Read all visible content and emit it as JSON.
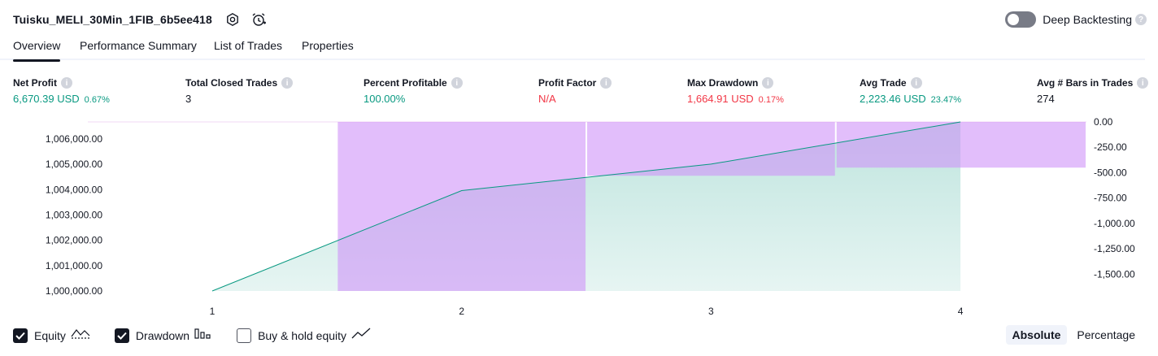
{
  "header": {
    "title": "Tuisku_MELI_30Min_1FIB_6b5ee418",
    "icons": [
      "settings-icon",
      "alarm-add-icon"
    ]
  },
  "deep_backtesting": {
    "label": "Deep Backtesting",
    "enabled": false,
    "help": "?"
  },
  "tabs": [
    {
      "label": "Overview",
      "active": true
    },
    {
      "label": "Performance Summary",
      "active": false
    },
    {
      "label": "List of Trades",
      "active": false
    },
    {
      "label": "Properties",
      "active": false
    }
  ],
  "metrics": [
    {
      "label": "Net Profit",
      "value": "6,670.39 USD",
      "pct": "0.67%",
      "color": "#089981"
    },
    {
      "label": "Total Closed Trades",
      "value": "3",
      "pct": "",
      "color": "#131722"
    },
    {
      "label": "Percent Profitable",
      "value": "100.00%",
      "pct": "",
      "color": "#089981"
    },
    {
      "label": "Profit Factor",
      "value": "N/A",
      "pct": "",
      "color": "#f23645"
    },
    {
      "label": "Max Drawdown",
      "value": "1,664.91 USD",
      "pct": "0.17%",
      "color": "#f23645"
    },
    {
      "label": "Avg Trade",
      "value": "2,223.46 USD",
      "pct": "23.47%",
      "color": "#089981"
    },
    {
      "label": "Avg # Bars in Trades",
      "value": "274",
      "pct": "",
      "color": "#131722"
    }
  ],
  "info_glyph": "i",
  "chart_data": {
    "type": "area",
    "x": [
      1,
      2,
      3,
      4
    ],
    "x_ticks": [
      "1",
      "2",
      "3",
      "4"
    ],
    "equity": {
      "values": [
        1000000,
        1003960,
        1005005,
        1006670
      ],
      "color": "#089981"
    },
    "drawdown": {
      "values": [
        0,
        -1664.91,
        -530,
        -450
      ],
      "color": "#ce93f8"
    },
    "left_axis": {
      "ticks": [
        1000000,
        1001000,
        1002000,
        1003000,
        1004000,
        1005000,
        1006000
      ],
      "labels": [
        "1,000,000.00",
        "1,001,000.00",
        "1,002,000.00",
        "1,003,000.00",
        "1,004,000.00",
        "1,005,000.00",
        "1,006,000.00"
      ],
      "range": [
        1000000,
        1006670
      ]
    },
    "right_axis": {
      "ticks": [
        0,
        -250,
        -500,
        -750,
        -1000,
        -1250,
        -1500
      ],
      "labels": [
        "0.00",
        "-250.00",
        "-500.00",
        "-750.00",
        "-1,000.00",
        "-1,250.00",
        "-1,500.00"
      ],
      "range": [
        -1664.91,
        0
      ]
    },
    "grid": false
  },
  "legend": [
    {
      "label": "Equity",
      "checked": true,
      "icon": "equity-line-icon"
    },
    {
      "label": "Drawdown",
      "checked": true,
      "icon": "drawdown-bars-icon"
    },
    {
      "label": "Buy & hold equity",
      "checked": false,
      "icon": "buy-hold-line-icon"
    }
  ],
  "modes": [
    {
      "label": "Absolute",
      "active": true
    },
    {
      "label": "Percentage",
      "active": false
    }
  ]
}
